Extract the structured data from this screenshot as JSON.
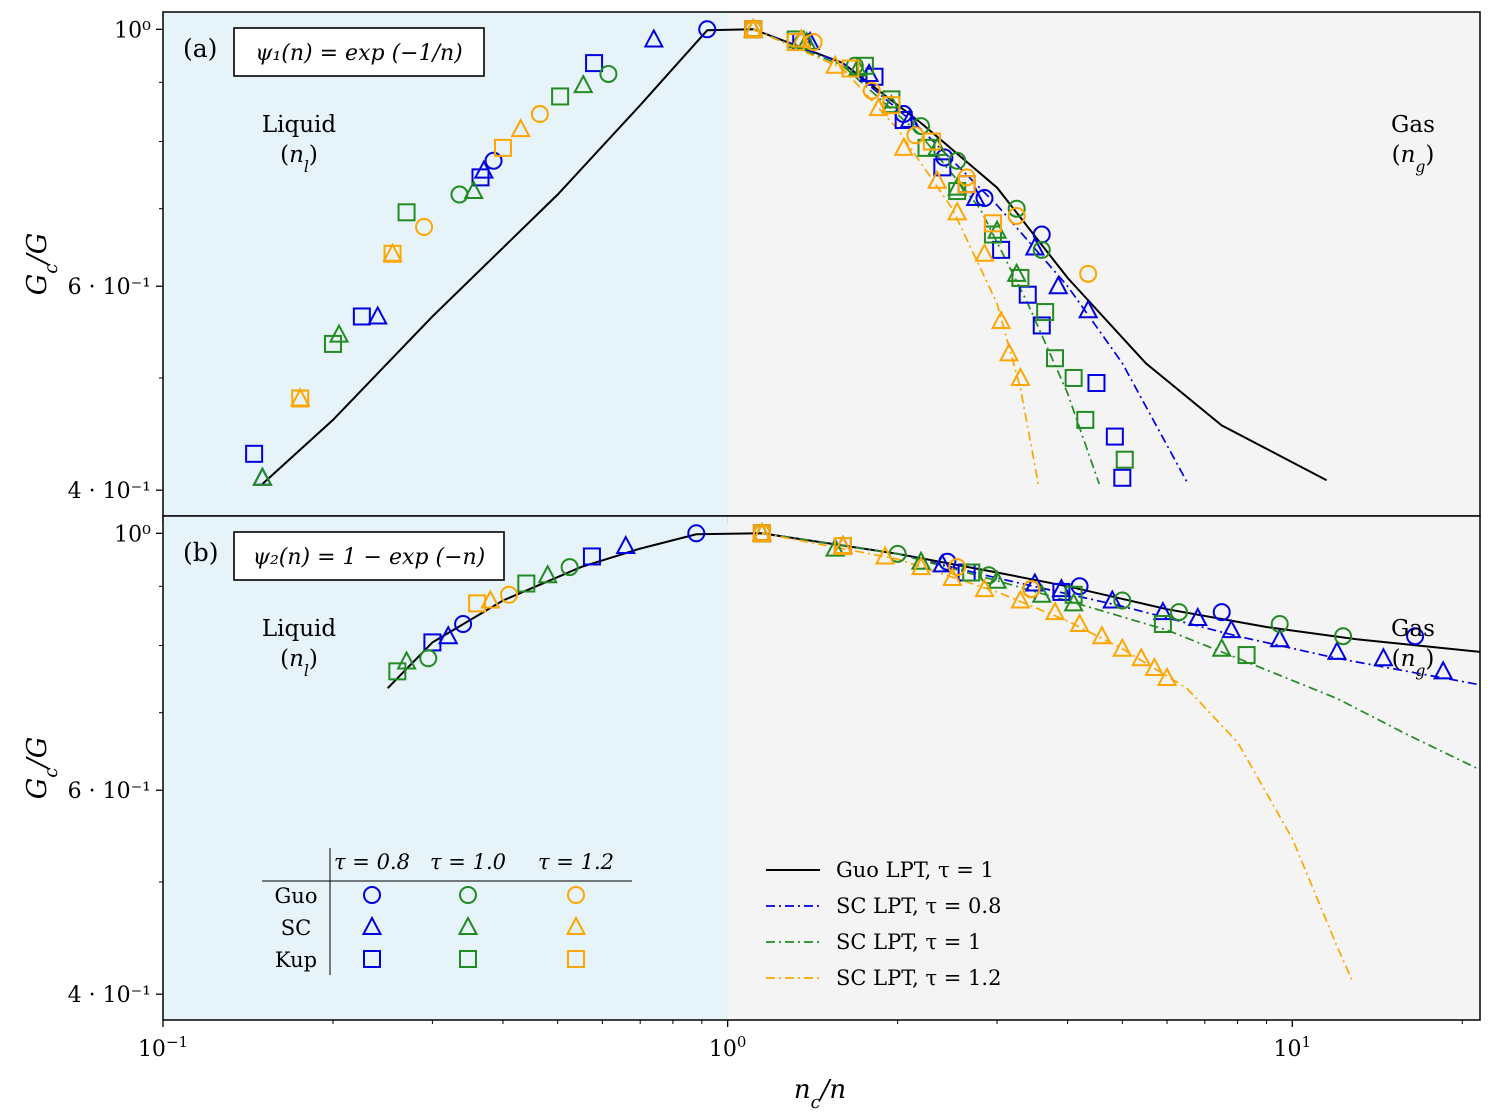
{
  "colors": {
    "tau08": "#0000e0",
    "tau10": "#228b22",
    "tau12": "#ffa500",
    "guo_lpt": "#000000",
    "liquid_bg": "#e6f3f8",
    "gas_bg": "#f4f4f4"
  },
  "figure": {
    "xlabel": "n_c/n",
    "x_ticks": [
      {
        "value": 0.1,
        "base": "10",
        "exp": "−1"
      },
      {
        "value": 1,
        "base": "10",
        "exp": "0"
      },
      {
        "value": 10,
        "base": "10",
        "exp": "1"
      }
    ]
  },
  "chart_data": [
    {
      "type": "scatter",
      "panel_label": "(a)",
      "formula": "ψ₁(n) = exp (−1/n)",
      "region_left": {
        "title": "Liquid",
        "symbol": "(n_l)"
      },
      "region_right": {
        "title": "Gas",
        "symbol": "(n_g)"
      },
      "xscale": "log",
      "yscale": "log",
      "xlim": [
        0.1,
        21.5
      ],
      "ylim": [
        0.38,
        1.035
      ],
      "ylabel": "G_c/G",
      "y_ticks": [
        {
          "value": 1.0,
          "label": "10⁰"
        },
        {
          "value": 0.6,
          "label": "6 · 10⁻¹"
        },
        {
          "value": 0.4,
          "label": "4 · 10⁻¹"
        }
      ],
      "series": [
        {
          "marker": "circle",
          "color": "tau08",
          "x": [
            0.92,
            0.385,
            1.11,
            2.05,
            2.42,
            2.85,
            3.6
          ],
          "y": [
            1.0,
            0.77,
            1.0,
            0.845,
            0.775,
            0.715,
            0.665
          ]
        },
        {
          "marker": "triangle",
          "color": "tau08",
          "x": [
            0.15,
            0.24,
            0.37,
            0.74,
            1.11,
            1.4,
            1.78,
            2.1,
            2.75,
            3.5,
            3.85,
            4.35
          ],
          "y": [
            0.41,
            0.565,
            0.755,
            0.98,
            1.0,
            0.975,
            0.915,
            0.835,
            0.715,
            0.648,
            0.6,
            0.572
          ]
        },
        {
          "marker": "square",
          "color": "tau08",
          "x": [
            0.145,
            0.225,
            0.365,
            0.58,
            1.11,
            1.35,
            1.82,
            2.05,
            2.4,
            2.65,
            3.05,
            3.4,
            3.6,
            4.5,
            4.85,
            5.0
          ],
          "y": [
            0.43,
            0.565,
            0.745,
            0.935,
            1.0,
            0.975,
            0.91,
            0.835,
            0.76,
            0.735,
            0.645,
            0.59,
            0.555,
            0.495,
            0.445,
            0.41
          ]
        },
        {
          "marker": "circle",
          "color": "tau10",
          "x": [
            0.335,
            0.615,
            1.11,
            1.36,
            1.68,
            2.2,
            2.55,
            3.25,
            3.6
          ],
          "y": [
            0.72,
            0.915,
            1.0,
            0.975,
            0.93,
            0.825,
            0.77,
            0.7,
            0.645
          ]
        },
        {
          "marker": "triangle",
          "color": "tau10",
          "x": [
            0.15,
            0.205,
            0.355,
            0.555,
            1.11,
            1.38,
            1.7,
            1.95,
            2.35,
            2.55,
            3.0,
            3.25
          ],
          "y": [
            0.41,
            0.545,
            0.725,
            0.895,
            1.0,
            0.975,
            0.925,
            0.86,
            0.79,
            0.73,
            0.67,
            0.615
          ]
        },
        {
          "marker": "square",
          "color": "tau10",
          "x": [
            0.2,
            0.27,
            0.505,
            1.11,
            1.32,
            1.75,
            1.95,
            2.25,
            2.55,
            2.95,
            3.3,
            3.65,
            3.8,
            4.1,
            4.3,
            5.05
          ],
          "y": [
            0.535,
            0.695,
            0.875,
            1.0,
            0.98,
            0.93,
            0.87,
            0.79,
            0.725,
            0.665,
            0.61,
            0.57,
            0.52,
            0.5,
            0.46,
            0.425
          ]
        },
        {
          "marker": "circle",
          "color": "tau12",
          "x": [
            0.29,
            0.465,
            1.11,
            1.42,
            1.8,
            2.15,
            2.65,
            3.25,
            4.35
          ],
          "y": [
            0.675,
            0.845,
            1.0,
            0.975,
            0.885,
            0.81,
            0.745,
            0.69,
            0.615
          ]
        },
        {
          "marker": "triangle",
          "color": "tau12",
          "x": [
            0.175,
            0.255,
            0.43,
            1.11,
            1.35,
            1.55,
            1.85,
            2.05,
            2.35,
            2.55,
            2.85,
            3.05,
            3.15,
            3.3
          ],
          "y": [
            0.48,
            0.64,
            0.82,
            1.0,
            0.98,
            0.93,
            0.855,
            0.79,
            0.74,
            0.695,
            0.64,
            0.56,
            0.525,
            0.5
          ]
        },
        {
          "marker": "square",
          "color": "tau12",
          "x": [
            0.175,
            0.255,
            0.4,
            1.11,
            1.32,
            1.65,
            1.95,
            2.3,
            2.65,
            2.95
          ],
          "y": [
            0.48,
            0.64,
            0.79,
            1.0,
            0.975,
            0.925,
            0.86,
            0.8,
            0.735,
            0.68
          ]
        }
      ],
      "lines": [
        {
          "style": "solid",
          "color": "guo_lpt",
          "x": [
            0.15,
            0.2,
            0.3,
            0.5,
            0.7,
            0.92,
            1.11,
            1.6,
            2.2,
            3.0,
            4.0,
            5.5,
            7.5,
            11.5
          ],
          "y": [
            0.405,
            0.46,
            0.565,
            0.72,
            0.86,
            0.998,
            1.0,
            0.935,
            0.83,
            0.73,
            0.61,
            0.515,
            0.455,
            0.408
          ]
        },
        {
          "style": "dashdot",
          "color": "tau08",
          "x": [
            1.11,
            1.6,
            2.2,
            3.0,
            4.0,
            5.0,
            6.5
          ],
          "y": [
            1.0,
            0.935,
            0.82,
            0.705,
            0.6,
            0.515,
            0.407
          ]
        },
        {
          "style": "dashdot",
          "color": "tau10",
          "x": [
            1.11,
            1.6,
            2.2,
            2.8,
            3.4,
            4.0,
            4.55
          ],
          "y": [
            1.0,
            0.93,
            0.81,
            0.7,
            0.58,
            0.485,
            0.405
          ]
        },
        {
          "style": "dashdot",
          "color": "tau12",
          "x": [
            1.11,
            1.6,
            2.0,
            2.5,
            3.0,
            3.3,
            3.55
          ],
          "y": [
            1.0,
            0.925,
            0.82,
            0.7,
            0.58,
            0.49,
            0.405
          ]
        }
      ]
    },
    {
      "type": "scatter",
      "panel_label": "(b)",
      "formula": "ψ₂(n) = 1 − exp (−n)",
      "region_left": {
        "title": "Liquid",
        "symbol": "(n_l)"
      },
      "region_right": {
        "title": "Gas",
        "symbol": "(n_g)"
      },
      "xscale": "log",
      "yscale": "log",
      "xlim": [
        0.1,
        21.5
      ],
      "ylim": [
        0.38,
        1.035
      ],
      "ylabel": "G_c/G",
      "y_ticks": [
        {
          "value": 1.0,
          "label": "10⁰"
        },
        {
          "value": 0.6,
          "label": "6 · 10⁻¹"
        },
        {
          "value": 0.4,
          "label": "4 · 10⁻¹"
        }
      ],
      "series": [
        {
          "marker": "circle",
          "color": "tau08",
          "x": [
            0.34,
            0.88,
            1.15,
            2.45,
            4.2,
            7.5,
            16.5
          ],
          "y": [
            0.835,
            1.0,
            1.0,
            0.945,
            0.9,
            0.855,
            0.815
          ]
        },
        {
          "marker": "triangle",
          "color": "tau08",
          "x": [
            0.32,
            0.66,
            1.15,
            1.6,
            2.4,
            3.5,
            3.9,
            4.8,
            5.9,
            6.8,
            7.8,
            9.5,
            12.0,
            14.5,
            18.5
          ],
          "y": [
            0.815,
            0.975,
            1.0,
            0.975,
            0.94,
            0.905,
            0.895,
            0.875,
            0.855,
            0.845,
            0.825,
            0.81,
            0.79,
            0.78,
            0.76
          ]
        },
        {
          "marker": "square",
          "color": "tau08",
          "x": [
            0.3,
            0.575,
            1.15,
            1.6,
            2.65,
            3.9
          ],
          "y": [
            0.805,
            0.955,
            1.0,
            0.975,
            0.925,
            0.89
          ]
        },
        {
          "marker": "circle",
          "color": "tau10",
          "x": [
            0.295,
            0.525,
            1.15,
            2.0,
            2.9,
            3.45,
            5.0,
            6.3,
            9.5,
            12.3
          ],
          "y": [
            0.78,
            0.935,
            1.0,
            0.96,
            0.92,
            0.895,
            0.875,
            0.855,
            0.835,
            0.815
          ]
        },
        {
          "marker": "triangle",
          "color": "tau10",
          "x": [
            0.27,
            0.48,
            1.15,
            1.55,
            2.2,
            3.0,
            3.6,
            4.1,
            7.5
          ],
          "y": [
            0.775,
            0.92,
            1.0,
            0.97,
            0.945,
            0.91,
            0.885,
            0.87,
            0.795
          ]
        },
        {
          "marker": "square",
          "color": "tau10",
          "x": [
            0.26,
            0.44,
            1.15,
            1.6,
            2.7,
            4.1,
            5.9,
            8.3
          ],
          "y": [
            0.76,
            0.905,
            1.0,
            0.975,
            0.925,
            0.885,
            0.835,
            0.785
          ]
        },
        {
          "marker": "circle",
          "color": "tau12",
          "x": [
            0.41,
            1.15,
            2.55,
            3.45
          ],
          "y": [
            0.885,
            1.0,
            0.935,
            0.895
          ]
        },
        {
          "marker": "triangle",
          "color": "tau12",
          "x": [
            0.38,
            1.15,
            1.6,
            1.9,
            2.2,
            2.5,
            2.85,
            3.3,
            3.8,
            4.2,
            4.6,
            5.0,
            5.4,
            5.7,
            6.0
          ],
          "y": [
            0.875,
            1.0,
            0.975,
            0.955,
            0.935,
            0.915,
            0.895,
            0.875,
            0.855,
            0.835,
            0.815,
            0.795,
            0.78,
            0.765,
            0.75
          ]
        },
        {
          "marker": "square",
          "color": "tau12",
          "x": [
            0.36,
            1.15,
            1.6
          ],
          "y": [
            0.87,
            1.0,
            0.975
          ]
        }
      ],
      "lines": [
        {
          "style": "solid",
          "color": "guo_lpt",
          "x": [
            0.25,
            0.3,
            0.4,
            0.55,
            0.7,
            0.88,
            1.15,
            2.0,
            3.0,
            4.0,
            6.0,
            9.0,
            13.0,
            21.5
          ],
          "y": [
            0.735,
            0.805,
            0.875,
            0.935,
            0.97,
            0.998,
            1.0,
            0.96,
            0.925,
            0.9,
            0.86,
            0.83,
            0.81,
            0.79
          ]
        },
        {
          "style": "dashdot",
          "color": "tau08",
          "x": [
            1.15,
            2.0,
            3.0,
            5.0,
            8.0,
            12.0,
            21.5
          ],
          "y": [
            1.0,
            0.96,
            0.915,
            0.865,
            0.815,
            0.78,
            0.74
          ]
        },
        {
          "style": "dashdot",
          "color": "tau10",
          "x": [
            1.15,
            2.0,
            3.0,
            4.5,
            6.0,
            8.0,
            12.0,
            16.0,
            21.5
          ],
          "y": [
            1.0,
            0.96,
            0.91,
            0.86,
            0.825,
            0.78,
            0.72,
            0.67,
            0.625
          ]
        },
        {
          "style": "dashdot",
          "color": "tau12",
          "x": [
            1.15,
            2.0,
            3.0,
            4.0,
            5.0,
            6.5,
            8.0,
            10.0,
            12.0,
            12.8
          ],
          "y": [
            1.0,
            0.95,
            0.89,
            0.84,
            0.795,
            0.735,
            0.66,
            0.545,
            0.44,
            0.41
          ]
        }
      ],
      "legend_markers": {
        "column_headers": [
          "τ = 0.8",
          "τ = 1.0",
          "τ = 1.2"
        ],
        "row_labels": [
          "Guo",
          "SC",
          "Kup"
        ],
        "row_markers": [
          "circle",
          "triangle",
          "square"
        ],
        "column_colors": [
          "tau08",
          "tau10",
          "tau12"
        ],
        "placement": "lower-left"
      },
      "legend_lines": {
        "placement": "lower-right",
        "entries": [
          {
            "label": "Guo LPT, τ = 1",
            "color": "guo_lpt",
            "style": "solid"
          },
          {
            "label": "SC LPT, τ = 0.8",
            "color": "tau08",
            "style": "dashdot"
          },
          {
            "label": "SC LPT, τ = 1",
            "color": "tau10",
            "style": "dashdot"
          },
          {
            "label": "SC LPT, τ = 1.2",
            "color": "tau12",
            "style": "dashdot"
          }
        ]
      }
    }
  ]
}
